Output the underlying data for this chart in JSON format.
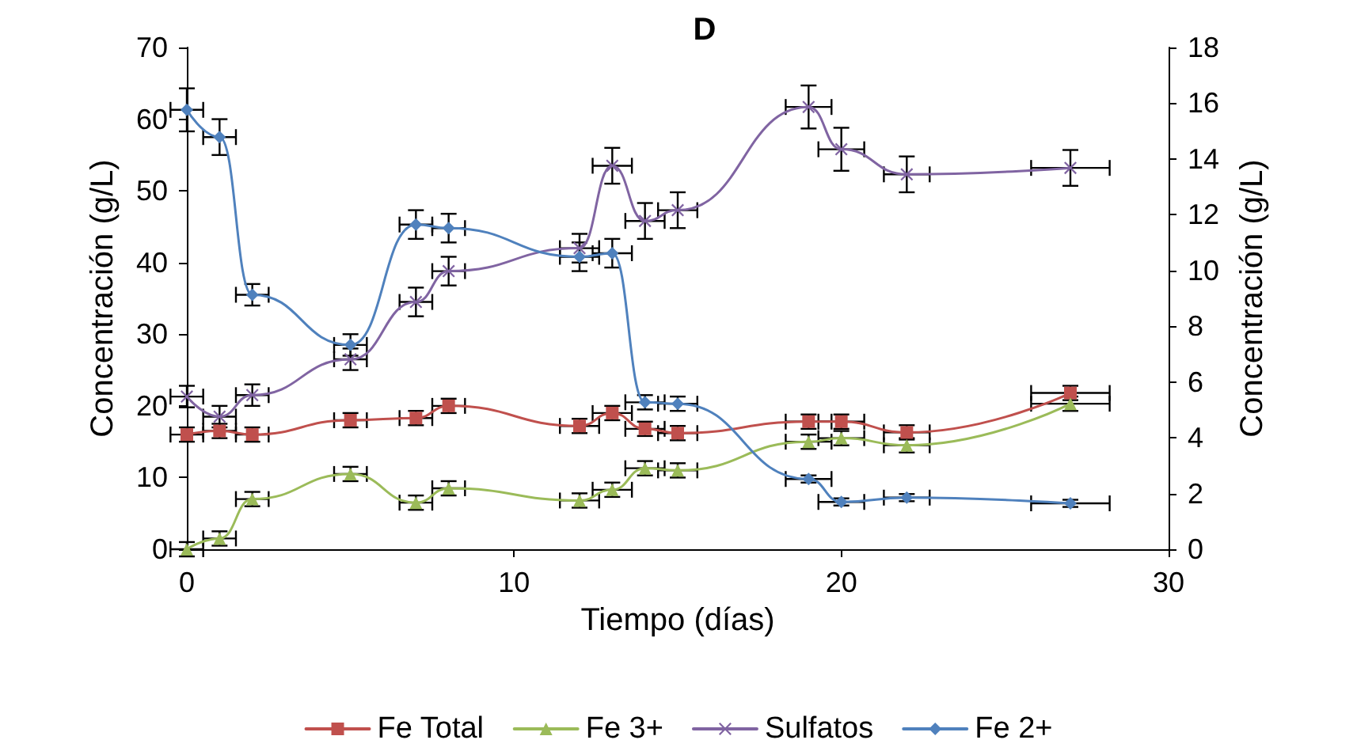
{
  "chart_data": {
    "type": "line",
    "title": "D",
    "xlabel": "Tiempo (días)",
    "ylabel": "Concentración (g/L)",
    "y2label": "Concentración (g/L)",
    "x": [
      0,
      1,
      2,
      5,
      7,
      8,
      12,
      13,
      14,
      15,
      19,
      20,
      22,
      27
    ],
    "xlim": [
      0,
      30
    ],
    "xticks": [
      0,
      10,
      20,
      30
    ],
    "ylim": [
      0,
      70
    ],
    "yticks": [
      0,
      10,
      20,
      30,
      40,
      50,
      60,
      70
    ],
    "y2lim": [
      0,
      18
    ],
    "y2ticks": [
      0,
      2,
      4,
      6,
      8,
      10,
      12,
      14,
      16,
      18
    ],
    "grid": false,
    "legend": "bottom",
    "series": [
      {
        "name": "Fe Total",
        "color": "#c0504d",
        "marker": "square",
        "values": [
          16,
          16.5,
          16,
          18,
          18.3,
          20,
          17.2,
          19,
          16.8,
          16.2,
          17.8,
          17.8,
          16.3,
          21.8
        ],
        "errors": [
          1,
          1,
          1,
          1,
          1,
          1,
          1,
          1,
          1,
          1,
          1,
          1,
          1,
          1
        ],
        "xerrors": [
          0.5,
          0.5,
          0.5,
          0.5,
          0.5,
          0.5,
          0.6,
          0.6,
          0.6,
          0.6,
          0.7,
          0.7,
          0.7,
          1.2
        ]
      },
      {
        "name": "Fe 3+",
        "color": "#9bbb59",
        "marker": "triangle",
        "values": [
          0,
          1.5,
          7,
          10.5,
          6.5,
          8.5,
          6.8,
          8.3,
          11.3,
          11,
          15,
          15.5,
          14.5,
          20.3
        ],
        "errors": [
          1,
          1,
          1,
          1,
          1,
          1,
          1,
          1,
          1,
          1,
          1,
          1,
          1,
          1
        ],
        "xerrors": [
          0.5,
          0.5,
          0.5,
          0.5,
          0.5,
          0.5,
          0.6,
          0.6,
          0.6,
          0.6,
          0.7,
          0.7,
          0.7,
          1.2
        ]
      },
      {
        "name": "Sulfatos",
        "color": "#8064a2",
        "marker": "cross",
        "values": [
          21.3,
          18.5,
          21.5,
          26.5,
          34.5,
          38.8,
          42,
          53.5,
          45.8,
          47.3,
          61.7,
          55.8,
          52.3,
          53.2
        ],
        "errors": [
          1.5,
          1.5,
          1.5,
          1.5,
          2,
          2,
          2,
          2.5,
          2.5,
          2.5,
          3,
          3,
          2.5,
          2.5
        ],
        "xerrors": [
          0.5,
          0.5,
          0.5,
          0.5,
          0.5,
          0.5,
          0.6,
          0.6,
          0.6,
          0.6,
          0.7,
          0.7,
          0.7,
          1.2
        ]
      },
      {
        "name": "Fe 2+",
        "color": "#4f81bd",
        "marker": "diamond",
        "values": [
          61.3,
          57.5,
          35.5,
          28.5,
          45.3,
          44.8,
          40.8,
          41.3,
          20.5,
          20.3,
          9.8,
          6.6,
          7.2,
          6.4
        ],
        "errors": [
          3,
          2.5,
          1.5,
          1.5,
          2,
          2,
          2,
          2,
          1,
          1,
          0.5,
          0.5,
          0.5,
          0.5
        ],
        "xerrors": [
          0.5,
          0.5,
          0.5,
          0.5,
          0.5,
          0.5,
          0.6,
          0.6,
          0.6,
          0.6,
          0.7,
          0.7,
          0.7,
          1.2
        ]
      }
    ]
  }
}
